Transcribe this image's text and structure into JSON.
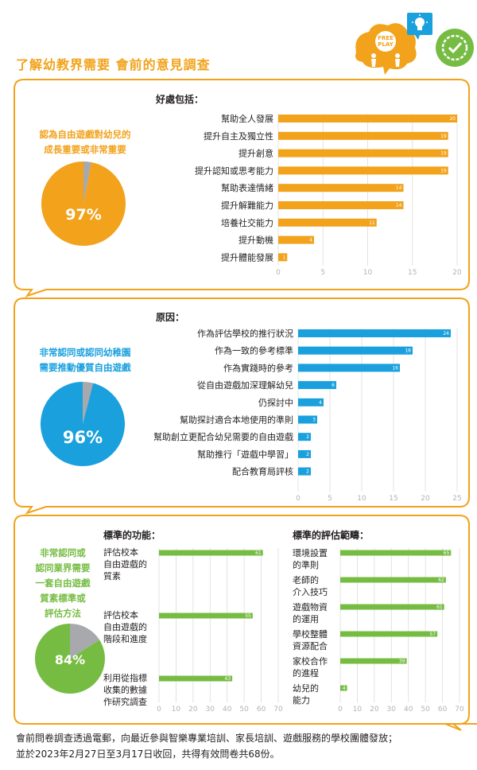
{
  "page": {
    "title": "了解幼教界需要 會前的意見調查"
  },
  "header_icons": {
    "bubble_text_top": "FREE",
    "bubble_text_bottom": "PLAY",
    "icons": [
      "free-play-bubble-icon",
      "lightbulb-icon",
      "badge-check-icon"
    ]
  },
  "colors": {
    "orange": "#f2a21b",
    "blue": "#1aa0dd",
    "green": "#76bc43",
    "grey": "#a7a9ac",
    "grid": "#dcdcdc"
  },
  "section1": {
    "claim_line1": "認為自由遊戲對幼兒的",
    "claim_line2": "成長重要或非常重要",
    "pie_label": "97%",
    "heading": "好處包括："
  },
  "section2": {
    "claim_line1": "非常認同或認同幼稚園",
    "claim_line2": "需要推動優質自由遊戲",
    "pie_label": "96%",
    "heading": "原因："
  },
  "section3": {
    "claim_lines": [
      "非常認同或",
      "認同業界需要",
      "一套自由遊戲",
      "質素標準或",
      "評估方法"
    ],
    "pie_label": "84%",
    "heading_left": "標準的功能：",
    "heading_right": "標準的評估範疇："
  },
  "chart_data": [
    {
      "type": "pie",
      "title": "認為自由遊戲對幼兒的成長重要或非常重要",
      "slices": [
        {
          "label": "97%",
          "value": 97
        },
        {
          "label": "",
          "value": 3
        }
      ]
    },
    {
      "type": "bar",
      "title": "好處包括：",
      "orientation": "horizontal",
      "categories": [
        "幫助全人發展",
        "提升自主及獨立性",
        "提升創意",
        "提升認知或思考能力",
        "幫助表達情緒",
        "提升解難能力",
        "培養社交能力",
        "提升動機",
        "提升體能發展"
      ],
      "values": [
        20,
        19,
        19,
        19,
        14,
        14,
        11,
        4,
        1
      ],
      "xlim": [
        0,
        20
      ],
      "ticks": [
        "0",
        "5",
        "10",
        "15",
        "20"
      ]
    },
    {
      "type": "pie",
      "title": "非常認同或認同幼稚園需要推動優質自由遊戲",
      "slices": [
        {
          "label": "96%",
          "value": 96
        },
        {
          "label": "",
          "value": 4
        }
      ]
    },
    {
      "type": "bar",
      "title": "原因：",
      "orientation": "horizontal",
      "categories": [
        "作為評估學校的推行狀況",
        "作為一致的參考標準",
        "作為實踐時的參考",
        "從自由遊戲加深理解幼兒",
        "仍探討中",
        "幫助探討適合本地使用的準則",
        "幫助創立更配合幼兒需要的自由遊戲",
        "幫助推行「遊戲中學習」",
        "配合教育局評核"
      ],
      "values": [
        24,
        18,
        16,
        6,
        4,
        3,
        2,
        2,
        2
      ],
      "xlim": [
        0,
        25
      ],
      "ticks": [
        "0",
        "5",
        "10",
        "15",
        "20",
        "25"
      ]
    },
    {
      "type": "pie",
      "title": "非常認同或認同業界需要一套自由遊戲質素標準或評估方法",
      "slices": [
        {
          "label": "84%",
          "value": 84
        },
        {
          "label": "",
          "value": 16
        }
      ]
    },
    {
      "type": "bar",
      "title": "標準的功能：",
      "orientation": "horizontal",
      "categories": [
        [
          "評估校本",
          "自由遊戲的",
          "質素"
        ],
        [
          "評估校本",
          "自由遊戲的",
          "階段和進度"
        ],
        [
          "利用從指標",
          "收集的數據",
          "作研究調查"
        ]
      ],
      "values": [
        61,
        55,
        43
      ],
      "xlim": [
        0,
        70
      ],
      "ticks": [
        "0",
        "10",
        "20",
        "30",
        "40",
        "50",
        "60",
        "70"
      ]
    },
    {
      "type": "bar",
      "title": "標準的評估範疇：",
      "orientation": "horizontal",
      "categories": [
        [
          "環境設置",
          "的準則"
        ],
        [
          "老師的",
          "介入技巧"
        ],
        [
          "遊戲物資",
          "的運用"
        ],
        [
          "學校整體",
          "資源配合"
        ],
        [
          "家校合作",
          "的進程"
        ],
        [
          "幼兒的",
          "能力"
        ]
      ],
      "values": [
        65,
        62,
        61,
        57,
        39,
        4
      ],
      "xlim": [
        0,
        70
      ],
      "ticks": [
        "0",
        "10",
        "20",
        "30",
        "40",
        "50",
        "60",
        "70"
      ]
    }
  ],
  "footer": {
    "line1": "會前問卷調查透過電郵，向最近參與智樂專業培訓、家長培訓、遊戲服務的學校團體發放；",
    "line2": "並於2023年2月27日至3月17日收回，共得有效問卷共68份。"
  }
}
